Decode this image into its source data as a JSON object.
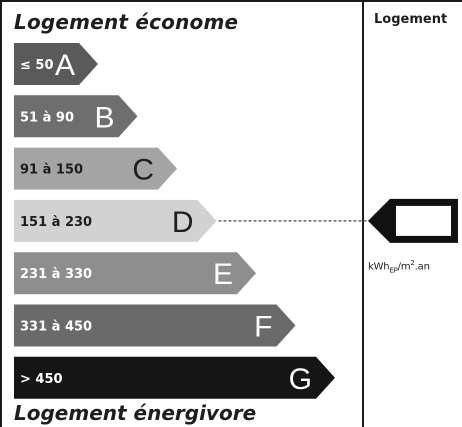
{
  "header": {
    "top_label": "Logement économe",
    "bottom_label": "Logement énergivore",
    "column_header": "Logement"
  },
  "classes": [
    {
      "range": "≤ 50",
      "letter": "A",
      "color": "#5a5a5a",
      "text_color": "#ffffff"
    },
    {
      "range": "51 à 90",
      "letter": "B",
      "color": "#6e6e6e",
      "text_color": "#ffffff"
    },
    {
      "range": "91 à 150",
      "letter": "C",
      "color": "#a4a4a4",
      "text_color": "#1e1e1e"
    },
    {
      "range": "151 à 230",
      "letter": "D",
      "color": "#d2d2d2",
      "text_color": "#1e1e1e"
    },
    {
      "range": "231 à 330",
      "letter": "E",
      "color": "#8e8e8e",
      "text_color": "#ffffff"
    },
    {
      "range": "331 à 450",
      "letter": "F",
      "color": "#6a6a6a",
      "text_color": "#ffffff"
    },
    {
      "range": "> 450",
      "letter": "G",
      "color": "#151515",
      "text_color": "#ffffff"
    }
  ],
  "indicator": {
    "pointing_class": "D",
    "value": "",
    "unit_base": "kWh",
    "unit_sub": "EP",
    "unit_rest": "/m",
    "unit_sup": "2",
    "unit_tail": ".an"
  }
}
